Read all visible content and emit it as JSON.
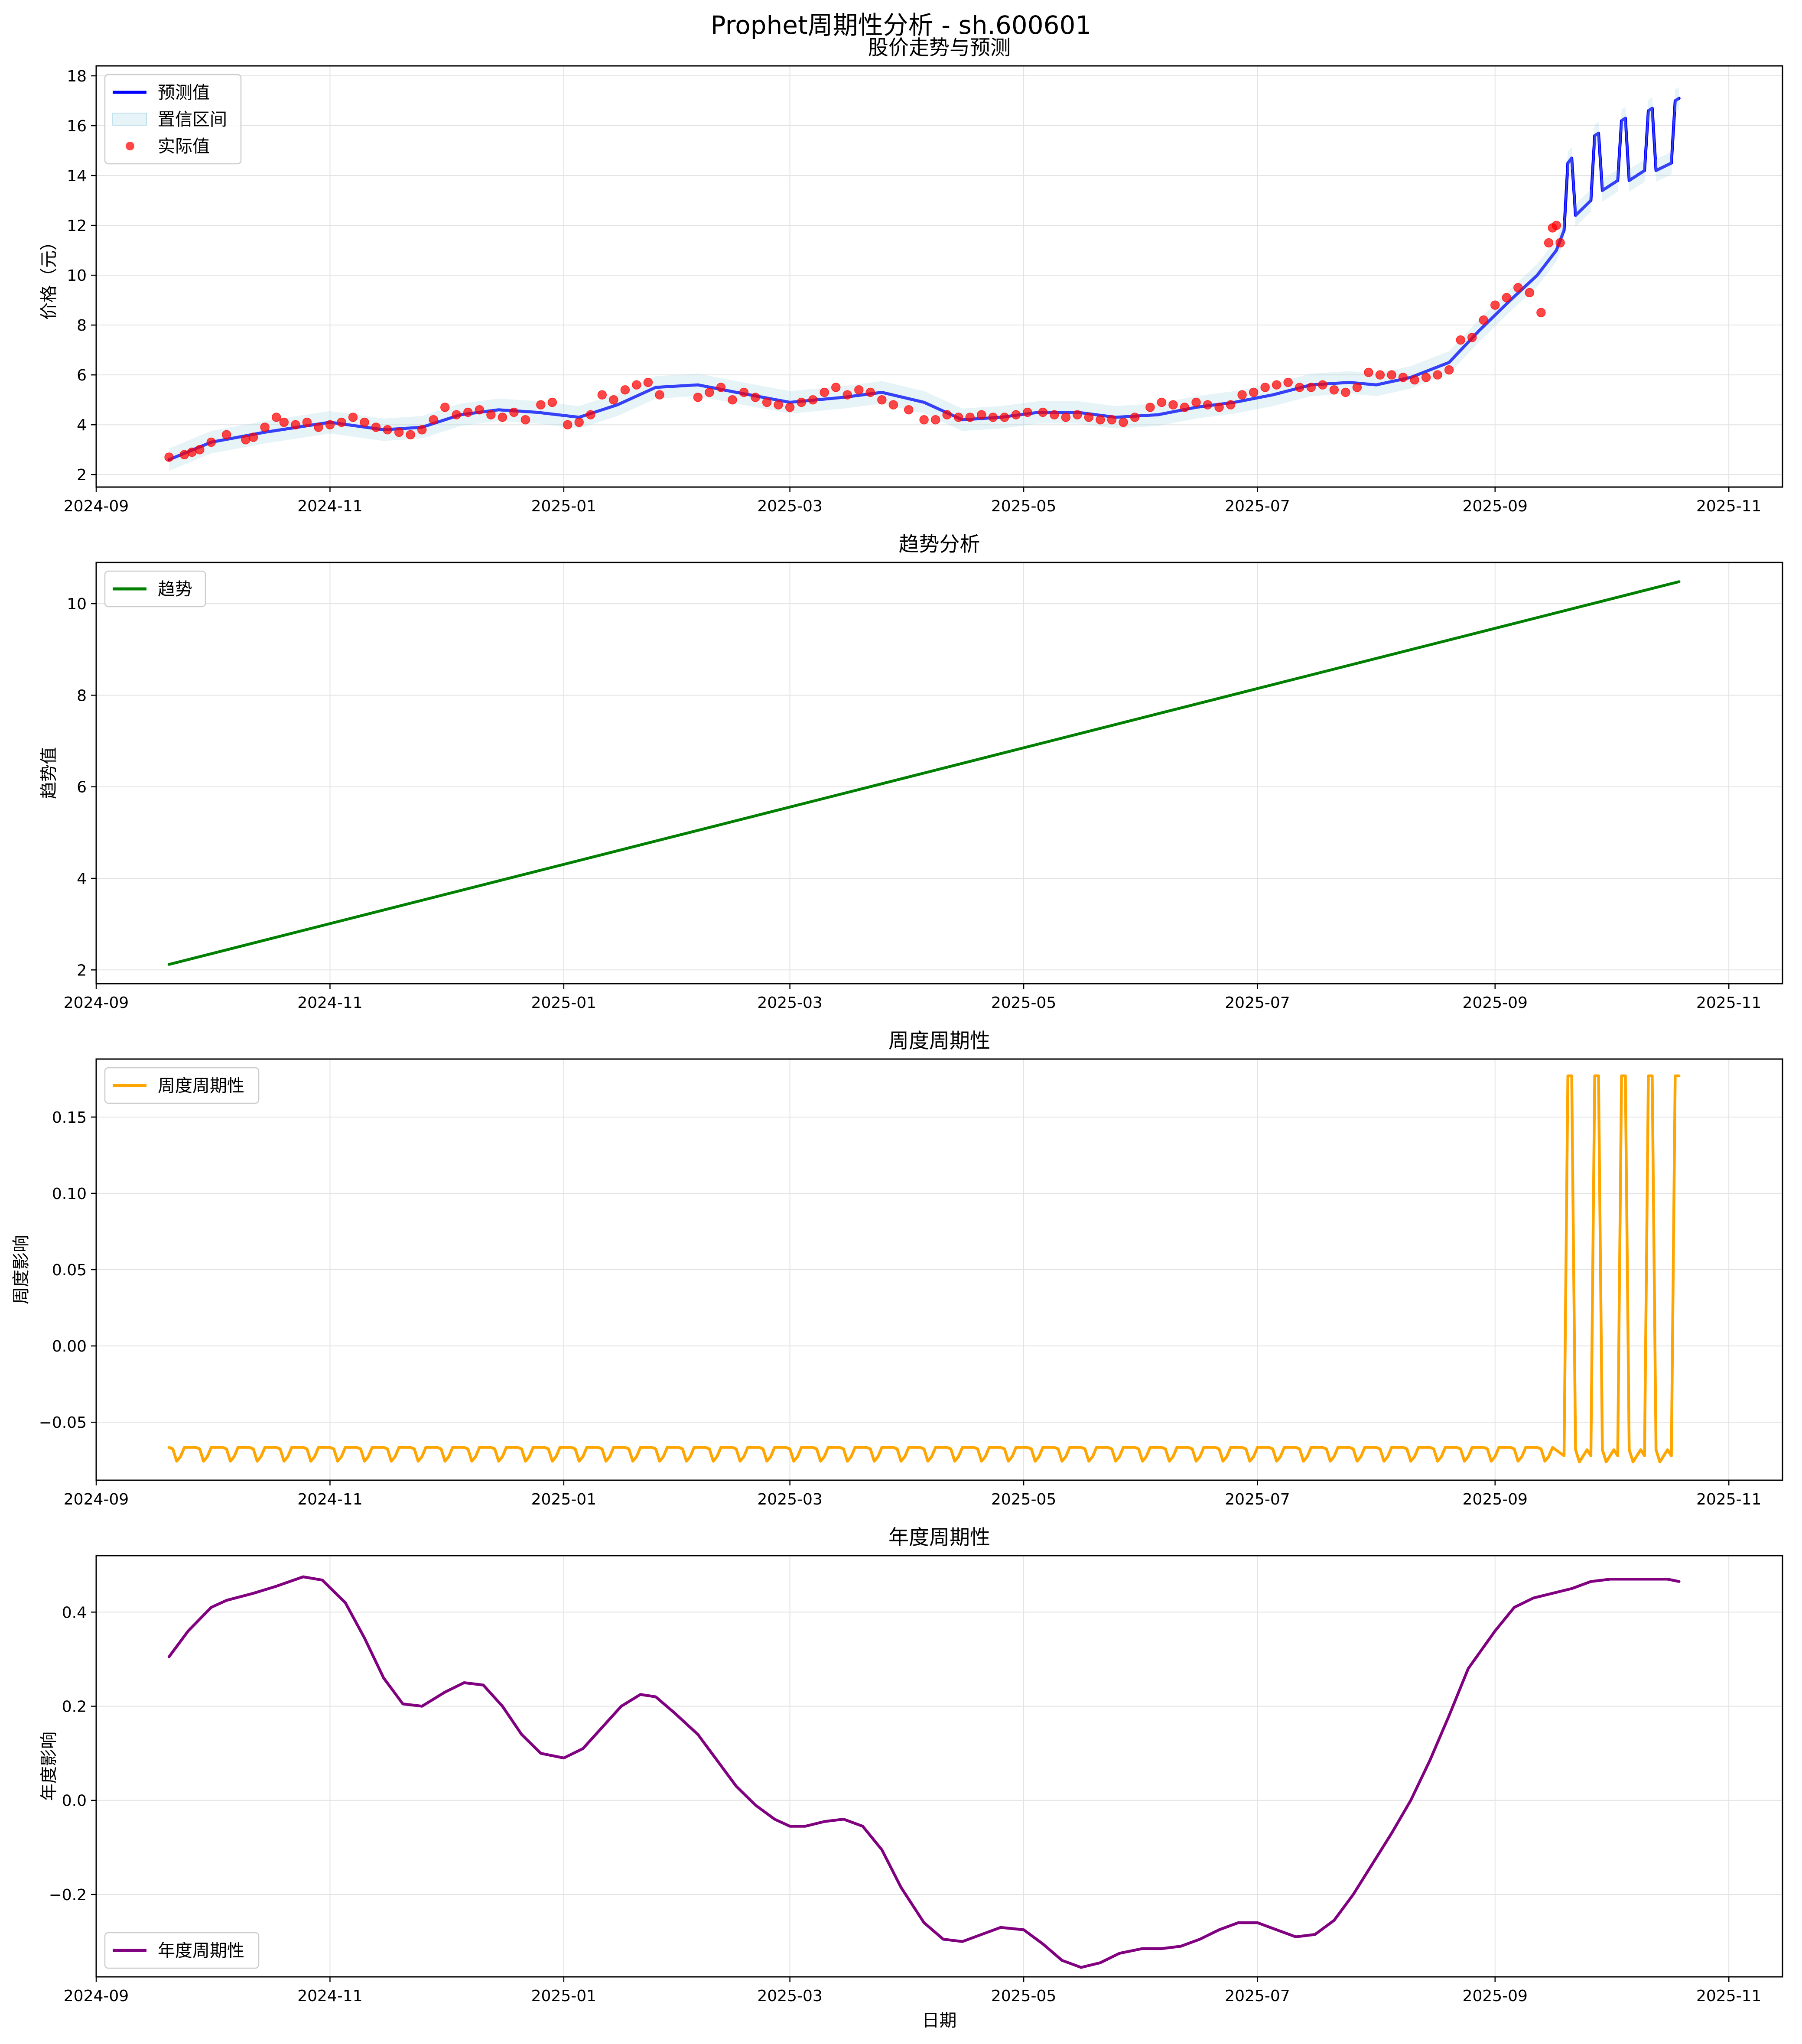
{
  "figure": {
    "title": "Prophet周期性分析 - sh.600601"
  },
  "chart_data": [
    {
      "type": "line",
      "title": "股价走势与预测",
      "xlabel": "",
      "ylabel": "价格（元）",
      "x_type": "date",
      "xlim": [
        "2024-09-01",
        "2025-11-15"
      ],
      "ylim": [
        1.5,
        18.4
      ],
      "yticks": [
        2,
        4,
        6,
        8,
        10,
        12,
        14,
        16,
        18
      ],
      "xticks": [
        "2024-09-01",
        "2024-11-01",
        "2025-01-01",
        "2025-03-01",
        "2025-05-01",
        "2025-07-01",
        "2025-09-01",
        "2025-11-01"
      ],
      "xtick_labels": [
        "2024-09",
        "2024-11",
        "2025-01",
        "2025-03",
        "2025-05",
        "2025-07",
        "2025-09",
        "2025-11"
      ],
      "grid": true,
      "legend_position": "upper-left",
      "legend": [
        "预测值",
        "置信区间",
        "实际值"
      ],
      "series": [
        {
          "name": "预测值",
          "kind": "line",
          "color": "#0000ff",
          "x": [
            "2024-09-20",
            "2024-10-01",
            "2024-10-15",
            "2024-11-01",
            "2024-11-15",
            "2024-11-25",
            "2024-12-05",
            "2024-12-15",
            "2024-12-25",
            "2025-01-05",
            "2025-01-15",
            "2025-01-25",
            "2025-02-05",
            "2025-02-15",
            "2025-03-01",
            "2025-03-15",
            "2025-03-25",
            "2025-04-05",
            "2025-04-15",
            "2025-04-25",
            "2025-05-05",
            "2025-05-15",
            "2025-05-25",
            "2025-06-05",
            "2025-06-15",
            "2025-06-25",
            "2025-07-05",
            "2025-07-15",
            "2025-07-25",
            "2025-08-01",
            "2025-08-10",
            "2025-08-20",
            "2025-08-28",
            "2025-09-05",
            "2025-09-12",
            "2025-09-17",
            "2025-09-19",
            "2025-09-20",
            "2025-09-21",
            "2025-09-22",
            "2025-09-26",
            "2025-09-27",
            "2025-09-28",
            "2025-09-29",
            "2025-10-03",
            "2025-10-04",
            "2025-10-05",
            "2025-10-06",
            "2025-10-10",
            "2025-10-11",
            "2025-10-12",
            "2025-10-13",
            "2025-10-17",
            "2025-10-18",
            "2025-10-19"
          ],
          "y": [
            2.6,
            3.3,
            3.7,
            4.1,
            3.8,
            3.9,
            4.4,
            4.6,
            4.5,
            4.3,
            4.8,
            5.5,
            5.6,
            5.3,
            4.9,
            5.1,
            5.3,
            4.9,
            4.2,
            4.3,
            4.5,
            4.5,
            4.3,
            4.4,
            4.7,
            4.9,
            5.2,
            5.6,
            5.7,
            5.6,
            5.9,
            6.5,
            7.8,
            9.0,
            10.0,
            11.0,
            11.8,
            14.5,
            14.7,
            12.4,
            13.0,
            15.6,
            15.7,
            13.4,
            13.8,
            16.2,
            16.3,
            13.8,
            14.2,
            16.6,
            16.7,
            14.2,
            14.5,
            17.0,
            17.1
          ]
        },
        {
          "name": "置信区间",
          "kind": "band",
          "color": "#add8e6",
          "band_width": 0.45
        },
        {
          "name": "实际值",
          "kind": "scatter",
          "color": "#ff0000",
          "x": [
            "2024-09-20",
            "2024-09-24",
            "2024-09-26",
            "2024-09-28",
            "2024-10-01",
            "2024-10-05",
            "2024-10-10",
            "2024-10-12",
            "2024-10-15",
            "2024-10-18",
            "2024-10-20",
            "2024-10-23",
            "2024-10-26",
            "2024-10-29",
            "2024-11-01",
            "2024-11-04",
            "2024-11-07",
            "2024-11-10",
            "2024-11-13",
            "2024-11-16",
            "2024-11-19",
            "2024-11-22",
            "2024-11-25",
            "2024-11-28",
            "2024-12-01",
            "2024-12-04",
            "2024-12-07",
            "2024-12-10",
            "2024-12-13",
            "2024-12-16",
            "2024-12-19",
            "2024-12-22",
            "2024-12-26",
            "2024-12-29",
            "2025-01-02",
            "2025-01-05",
            "2025-01-08",
            "2025-01-11",
            "2025-01-14",
            "2025-01-17",
            "2025-01-20",
            "2025-01-23",
            "2025-01-26",
            "2025-02-05",
            "2025-02-08",
            "2025-02-11",
            "2025-02-14",
            "2025-02-17",
            "2025-02-20",
            "2025-02-23",
            "2025-02-26",
            "2025-03-01",
            "2025-03-04",
            "2025-03-07",
            "2025-03-10",
            "2025-03-13",
            "2025-03-16",
            "2025-03-19",
            "2025-03-22",
            "2025-03-25",
            "2025-03-28",
            "2025-04-01",
            "2025-04-05",
            "2025-04-08",
            "2025-04-11",
            "2025-04-14",
            "2025-04-17",
            "2025-04-20",
            "2025-04-23",
            "2025-04-26",
            "2025-04-29",
            "2025-05-02",
            "2025-05-06",
            "2025-05-09",
            "2025-05-12",
            "2025-05-15",
            "2025-05-18",
            "2025-05-21",
            "2025-05-24",
            "2025-05-27",
            "2025-05-30",
            "2025-06-03",
            "2025-06-06",
            "2025-06-09",
            "2025-06-12",
            "2025-06-15",
            "2025-06-18",
            "2025-06-21",
            "2025-06-24",
            "2025-06-27",
            "2025-06-30",
            "2025-07-03",
            "2025-07-06",
            "2025-07-09",
            "2025-07-12",
            "2025-07-15",
            "2025-07-18",
            "2025-07-21",
            "2025-07-24",
            "2025-07-27",
            "2025-07-30",
            "2025-08-02",
            "2025-08-05",
            "2025-08-08",
            "2025-08-11",
            "2025-08-14",
            "2025-08-17",
            "2025-08-20",
            "2025-08-23",
            "2025-08-26",
            "2025-08-29",
            "2025-09-01",
            "2025-09-04",
            "2025-09-07",
            "2025-09-10",
            "2025-09-13",
            "2025-09-15",
            "2025-09-16",
            "2025-09-17",
            "2025-09-18"
          ],
          "y": [
            2.7,
            2.8,
            2.9,
            3.0,
            3.3,
            3.6,
            3.4,
            3.5,
            3.9,
            4.3,
            4.1,
            4.0,
            4.1,
            3.9,
            4.0,
            4.1,
            4.3,
            4.1,
            3.9,
            3.8,
            3.7,
            3.6,
            3.8,
            4.2,
            4.7,
            4.4,
            4.5,
            4.6,
            4.4,
            4.3,
            4.5,
            4.2,
            4.8,
            4.9,
            4.0,
            4.1,
            4.4,
            5.2,
            5.0,
            5.4,
            5.6,
            5.7,
            5.2,
            5.1,
            5.3,
            5.5,
            5.0,
            5.3,
            5.1,
            4.9,
            4.8,
            4.7,
            4.9,
            5.0,
            5.3,
            5.5,
            5.2,
            5.4,
            5.3,
            5.0,
            4.8,
            4.6,
            4.2,
            4.2,
            4.4,
            4.3,
            4.3,
            4.4,
            4.3,
            4.3,
            4.4,
            4.5,
            4.5,
            4.4,
            4.3,
            4.4,
            4.3,
            4.2,
            4.2,
            4.1,
            4.3,
            4.7,
            4.9,
            4.8,
            4.7,
            4.9,
            4.8,
            4.7,
            4.8,
            5.2,
            5.3,
            5.5,
            5.6,
            5.7,
            5.5,
            5.5,
            5.6,
            5.4,
            5.3,
            5.5,
            6.1,
            6.0,
            6.0,
            5.9,
            5.8,
            5.9,
            6.0,
            6.2,
            7.4,
            7.5,
            8.2,
            8.8,
            9.1,
            9.5,
            9.3,
            8.5,
            11.3,
            11.9,
            12.0,
            11.3
          ]
        }
      ]
    },
    {
      "type": "line",
      "title": "趋势分析",
      "xlabel": "",
      "ylabel": "趋势值",
      "x_type": "date",
      "xlim": [
        "2024-09-01",
        "2025-11-15"
      ],
      "ylim": [
        1.7,
        10.9
      ],
      "yticks": [
        2,
        4,
        6,
        8,
        10
      ],
      "xticks": [
        "2024-09-01",
        "2024-11-01",
        "2025-01-01",
        "2025-03-01",
        "2025-05-01",
        "2025-07-01",
        "2025-09-01",
        "2025-11-01"
      ],
      "xtick_labels": [
        "2024-09",
        "2024-11",
        "2025-01",
        "2025-03",
        "2025-05",
        "2025-07",
        "2025-09",
        "2025-11"
      ],
      "grid": true,
      "legend_position": "upper-left",
      "legend": [
        "趋势"
      ],
      "series": [
        {
          "name": "趋势",
          "kind": "line",
          "color": "#008000",
          "x": [
            "2024-09-20",
            "2025-10-19"
          ],
          "y": [
            2.12,
            10.48
          ]
        }
      ]
    },
    {
      "type": "line",
      "title": "周度周期性",
      "xlabel": "",
      "ylabel": "周度影响",
      "x_type": "date",
      "xlim": [
        "2024-09-01",
        "2025-11-15"
      ],
      "ylim": [
        -0.088,
        0.188
      ],
      "yticks": [
        -0.05,
        0.0,
        0.05,
        0.1,
        0.15
      ],
      "ytick_labels": [
        "−0.05",
        "0.00",
        "0.05",
        "0.10",
        "0.15"
      ],
      "xticks": [
        "2024-09-01",
        "2024-11-01",
        "2025-01-01",
        "2025-03-01",
        "2025-05-01",
        "2025-07-01",
        "2025-09-01",
        "2025-11-01"
      ],
      "xtick_labels": [
        "2024-09",
        "2024-11",
        "2025-01",
        "2025-03",
        "2025-05",
        "2025-07",
        "2025-09",
        "2025-11"
      ],
      "grid": true,
      "legend_position": "upper-left",
      "legend": [
        "周度周期性"
      ],
      "weekly_pattern": {
        "start": "2024-09-20",
        "end": "2025-09-19",
        "values": [
          -0.0665,
          -0.0675,
          -0.0755,
          -0.0725,
          -0.0665
        ]
      },
      "series": [
        {
          "name": "周度周期性",
          "kind": "line",
          "color": "#ffa500",
          "x": [
            "2025-09-19",
            "2025-09-20",
            "2025-09-21",
            "2025-09-22",
            "2025-09-23",
            "2025-09-25",
            "2025-09-26",
            "2025-09-27",
            "2025-09-28",
            "2025-09-29",
            "2025-09-30",
            "2025-10-02",
            "2025-10-03",
            "2025-10-04",
            "2025-10-05",
            "2025-10-06",
            "2025-10-07",
            "2025-10-09",
            "2025-10-10",
            "2025-10-11",
            "2025-10-12",
            "2025-10-13",
            "2025-10-14",
            "2025-10-16",
            "2025-10-17",
            "2025-10-18",
            "2025-10-19"
          ],
          "y": [
            -0.072,
            0.177,
            0.177,
            -0.068,
            -0.076,
            -0.068,
            -0.072,
            0.177,
            0.177,
            -0.068,
            -0.076,
            -0.068,
            -0.072,
            0.177,
            0.177,
            -0.068,
            -0.076,
            -0.068,
            -0.072,
            0.177,
            0.177,
            -0.068,
            -0.076,
            -0.068,
            -0.072,
            0.177,
            0.177
          ]
        }
      ]
    },
    {
      "type": "line",
      "title": "年度周期性",
      "xlabel": "日期",
      "ylabel": "年度影响",
      "x_type": "date",
      "xlim": [
        "2024-09-01",
        "2025-11-15"
      ],
      "ylim": [
        -0.375,
        0.52
      ],
      "yticks": [
        -0.2,
        0.0,
        0.2,
        0.4
      ],
      "ytick_labels": [
        "−0.2",
        "0.0",
        "0.2",
        "0.4"
      ],
      "xticks": [
        "2024-09-01",
        "2024-11-01",
        "2025-01-01",
        "2025-03-01",
        "2025-05-01",
        "2025-07-01",
        "2025-09-01",
        "2025-11-01"
      ],
      "xtick_labels": [
        "2024-09",
        "2024-11",
        "2025-01",
        "2025-03",
        "2025-05",
        "2025-07",
        "2025-09",
        "2025-11"
      ],
      "grid": true,
      "legend_position": "lower-left",
      "legend": [
        "年度周期性"
      ],
      "series": [
        {
          "name": "年度周期性",
          "kind": "line",
          "color": "#800080",
          "x": [
            "2024-09-20",
            "2024-09-25",
            "2024-10-01",
            "2024-10-05",
            "2024-10-12",
            "2024-10-18",
            "2024-10-25",
            "2024-10-30",
            "2024-11-05",
            "2024-11-10",
            "2024-11-15",
            "2024-11-20",
            "2024-11-25",
            "2024-12-01",
            "2024-12-06",
            "2024-12-11",
            "2024-12-16",
            "2024-12-21",
            "2024-12-26",
            "2025-01-01",
            "2025-01-06",
            "2025-01-11",
            "2025-01-16",
            "2025-01-21",
            "2025-01-25",
            "2025-01-30",
            "2025-02-05",
            "2025-02-10",
            "2025-02-15",
            "2025-02-20",
            "2025-02-25",
            "2025-03-01",
            "2025-03-05",
            "2025-03-10",
            "2025-03-15",
            "2025-03-20",
            "2025-03-25",
            "2025-03-30",
            "2025-04-05",
            "2025-04-10",
            "2025-04-15",
            "2025-04-20",
            "2025-04-25",
            "2025-05-01",
            "2025-05-06",
            "2025-05-11",
            "2025-05-16",
            "2025-05-21",
            "2025-05-26",
            "2025-06-01",
            "2025-06-06",
            "2025-06-11",
            "2025-06-16",
            "2025-06-21",
            "2025-06-26",
            "2025-07-01",
            "2025-07-06",
            "2025-07-11",
            "2025-07-16",
            "2025-07-21",
            "2025-07-26",
            "2025-07-31",
            "2025-08-05",
            "2025-08-10",
            "2025-08-15",
            "2025-08-20",
            "2025-08-25",
            "2025-09-01",
            "2025-09-06",
            "2025-09-11",
            "2025-09-16",
            "2025-09-21",
            "2025-09-26",
            "2025-10-01",
            "2025-10-06",
            "2025-10-11",
            "2025-10-16",
            "2025-10-19"
          ],
          "y": [
            0.305,
            0.36,
            0.41,
            0.425,
            0.44,
            0.455,
            0.475,
            0.468,
            0.42,
            0.345,
            0.26,
            0.205,
            0.2,
            0.23,
            0.25,
            0.245,
            0.2,
            0.14,
            0.1,
            0.09,
            0.11,
            0.155,
            0.2,
            0.225,
            0.22,
            0.185,
            0.14,
            0.085,
            0.03,
            -0.01,
            -0.04,
            -0.055,
            -0.055,
            -0.045,
            -0.04,
            -0.055,
            -0.105,
            -0.185,
            -0.26,
            -0.295,
            -0.3,
            -0.285,
            -0.27,
            -0.275,
            -0.305,
            -0.34,
            -0.355,
            -0.345,
            -0.325,
            -0.315,
            -0.315,
            -0.31,
            -0.295,
            -0.275,
            -0.26,
            -0.26,
            -0.275,
            -0.29,
            -0.285,
            -0.255,
            -0.2,
            -0.135,
            -0.07,
            0.0,
            0.085,
            0.18,
            0.28,
            0.36,
            0.41,
            0.43,
            0.44,
            0.45,
            0.465,
            0.47,
            0.47,
            0.47,
            0.47,
            0.465
          ]
        }
      ]
    }
  ]
}
